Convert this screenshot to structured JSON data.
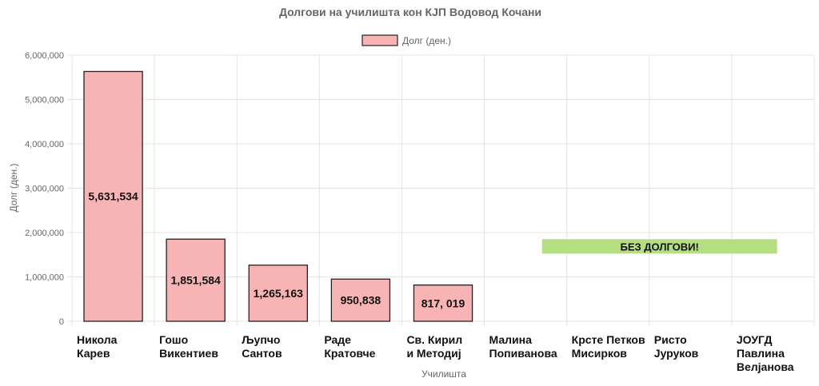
{
  "chart_data": {
    "type": "bar",
    "title": "Долгови на училишта кон КЈП Водовод Кочани",
    "xlabel": "Училишта",
    "ylabel": "Долг (ден.)",
    "ylim": [
      0,
      6000000
    ],
    "yticks": [
      "0",
      "1,000,000",
      "2,000,000",
      "3,000,000",
      "4,000,000",
      "5,000,000",
      "6,000,000"
    ],
    "grid": true,
    "legend_position": "top",
    "categories": [
      [
        "Никола",
        "Карев"
      ],
      [
        "Гошо",
        "Викентиев"
      ],
      [
        "Љупчо",
        "Сантов"
      ],
      [
        "Раде",
        "Кратовче"
      ],
      [
        "Св. Кирил",
        "и Методиј"
      ],
      [
        "Малина",
        "Попиванова"
      ],
      [
        "Крсте Петков",
        "Мисирков"
      ],
      [
        "Ристо",
        "Јуруков"
      ],
      [
        "ЈОУГД",
        "Павлина",
        "Велјанова"
      ]
    ],
    "series": [
      {
        "name": "Долг (ден.)",
        "values": [
          5631534,
          1851584,
          1265163,
          950838,
          817019,
          null,
          null,
          null,
          null
        ],
        "data_labels": [
          "5,631,534",
          "1,851,584",
          "1,265,163",
          "950,838",
          "817, 019"
        ]
      }
    ],
    "annotation": {
      "text": "БЕЗ ДОЛГОВИ!",
      "from_category": 5,
      "to_category": 8,
      "y_value": 1850000
    },
    "colors": {
      "bar_fill": "#f8b4b4",
      "bar_stroke": "#222222",
      "annotation_fill": "#b5dd82",
      "grid": "#e4e4e4",
      "axis_text": "#666666"
    }
  }
}
